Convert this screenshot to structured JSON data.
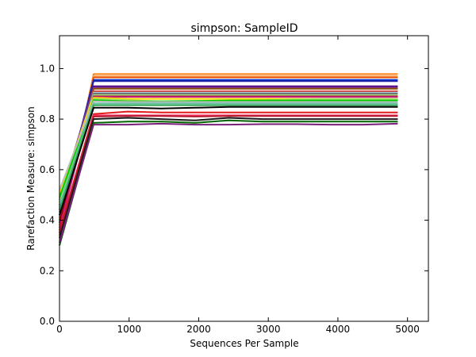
{
  "chart_data": {
    "type": "line",
    "title": "simpson: SampleID",
    "xlabel": "Sequences Per Sample",
    "ylabel": "Rarefaction Measure: simpson",
    "xlim": [
      0,
      5300
    ],
    "ylim": [
      0.0,
      1.13
    ],
    "x_ticks": [
      "0",
      "1000",
      "2000",
      "3000",
      "4000",
      "5000"
    ],
    "y_ticks": [
      "0.0",
      "0.2",
      "0.4",
      "0.6",
      "0.8",
      "1.0"
    ],
    "grid": false,
    "legend": "none",
    "x": [
      0,
      490,
      980,
      1460,
      1950,
      2430,
      2920,
      3400,
      3890,
      4370,
      4860
    ],
    "series": [
      {
        "color": "#ff7f0e",
        "values": [
          0.34,
          0.978,
          0.978,
          0.978,
          0.978,
          0.978,
          0.978,
          0.978,
          0.978,
          0.978,
          0.978
        ]
      },
      {
        "color": "#fdae6b",
        "values": [
          0.36,
          0.97,
          0.97,
          0.97,
          0.97,
          0.97,
          0.97,
          0.97,
          0.97,
          0.97,
          0.97
        ]
      },
      {
        "color": "#e6550d",
        "values": [
          0.38,
          0.965,
          0.965,
          0.965,
          0.965,
          0.965,
          0.965,
          0.965,
          0.965,
          0.965,
          0.965
        ]
      },
      {
        "color": "#0033cc",
        "values": [
          0.42,
          0.955,
          0.955,
          0.955,
          0.955,
          0.955,
          0.955,
          0.955,
          0.955,
          0.955,
          0.955
        ]
      },
      {
        "color": "#2222aa",
        "values": [
          0.44,
          0.95,
          0.95,
          0.95,
          0.95,
          0.95,
          0.95,
          0.95,
          0.95,
          0.95,
          0.95
        ]
      },
      {
        "color": "#4b0082",
        "values": [
          0.46,
          0.93,
          0.93,
          0.93,
          0.93,
          0.93,
          0.93,
          0.93,
          0.93,
          0.93,
          0.93
        ]
      },
      {
        "color": "#7b3294",
        "values": [
          0.48,
          0.925,
          0.925,
          0.925,
          0.925,
          0.925,
          0.925,
          0.925,
          0.925,
          0.925,
          0.925
        ]
      },
      {
        "color": "#8c510a",
        "values": [
          0.4,
          0.92,
          0.92,
          0.92,
          0.92,
          0.92,
          0.92,
          0.92,
          0.92,
          0.92,
          0.92
        ]
      },
      {
        "color": "#d73027",
        "values": [
          0.41,
          0.91,
          0.91,
          0.91,
          0.91,
          0.91,
          0.91,
          0.91,
          0.91,
          0.91,
          0.91
        ]
      },
      {
        "color": "#9ecae1",
        "values": [
          0.45,
          0.905,
          0.905,
          0.905,
          0.905,
          0.905,
          0.905,
          0.905,
          0.905,
          0.905,
          0.905
        ]
      },
      {
        "color": "#636363",
        "values": [
          0.43,
          0.9,
          0.9,
          0.9,
          0.9,
          0.9,
          0.9,
          0.9,
          0.9,
          0.9,
          0.9
        ]
      },
      {
        "color": "#b2df8a",
        "values": [
          0.5,
          0.895,
          0.895,
          0.895,
          0.895,
          0.895,
          0.895,
          0.895,
          0.895,
          0.895,
          0.895
        ]
      },
      {
        "color": "#8b0000",
        "values": [
          0.39,
          0.89,
          0.89,
          0.89,
          0.89,
          0.89,
          0.89,
          0.89,
          0.89,
          0.89,
          0.89
        ]
      },
      {
        "color": "#c51b7d",
        "values": [
          0.37,
          0.888,
          0.888,
          0.888,
          0.888,
          0.888,
          0.888,
          0.888,
          0.888,
          0.888,
          0.888
        ]
      },
      {
        "color": "#ffd700",
        "values": [
          0.51,
          0.885,
          0.88,
          0.88,
          0.88,
          0.88,
          0.88,
          0.88,
          0.88,
          0.88,
          0.88
        ]
      },
      {
        "color": "#a6d96a",
        "values": [
          0.47,
          0.88,
          0.875,
          0.87,
          0.87,
          0.872,
          0.875,
          0.878,
          0.88,
          0.88,
          0.88
        ]
      },
      {
        "color": "#00cc00",
        "values": [
          0.49,
          0.875,
          0.87,
          0.87,
          0.872,
          0.874,
          0.874,
          0.874,
          0.874,
          0.874,
          0.874
        ]
      },
      {
        "color": "#bdbdbd",
        "values": [
          0.52,
          0.87,
          0.868,
          0.868,
          0.868,
          0.868,
          0.868,
          0.868,
          0.868,
          0.868,
          0.868
        ]
      },
      {
        "color": "#66c2a5",
        "values": [
          0.46,
          0.862,
          0.862,
          0.862,
          0.862,
          0.862,
          0.862,
          0.862,
          0.862,
          0.862,
          0.862
        ]
      },
      {
        "color": "#31a354",
        "values": [
          0.44,
          0.855,
          0.855,
          0.855,
          0.855,
          0.855,
          0.855,
          0.855,
          0.855,
          0.855,
          0.855
        ]
      },
      {
        "color": "#000000",
        "values": [
          0.42,
          0.845,
          0.845,
          0.842,
          0.845,
          0.848,
          0.848,
          0.848,
          0.848,
          0.848,
          0.848
        ]
      },
      {
        "color": "#e31a1c",
        "values": [
          0.36,
          0.82,
          0.83,
          0.826,
          0.826,
          0.826,
          0.826,
          0.826,
          0.826,
          0.826,
          0.826
        ]
      },
      {
        "color": "#ff3366",
        "values": [
          0.35,
          0.815,
          0.815,
          0.815,
          0.815,
          0.815,
          0.815,
          0.815,
          0.815,
          0.815,
          0.815
        ]
      },
      {
        "color": "#b2182b",
        "values": [
          0.35,
          0.81,
          0.812,
          0.812,
          0.81,
          0.812,
          0.812,
          0.812,
          0.812,
          0.812,
          0.812
        ]
      },
      {
        "color": "#1a1a1a",
        "values": [
          0.33,
          0.8,
          0.805,
          0.8,
          0.795,
          0.805,
          0.8,
          0.8,
          0.8,
          0.8,
          0.8
        ]
      },
      {
        "color": "#006400",
        "values": [
          0.3,
          0.785,
          0.79,
          0.79,
          0.785,
          0.795,
          0.79,
          0.79,
          0.79,
          0.79,
          0.79
        ]
      },
      {
        "color": "#7a1f7a",
        "values": [
          0.31,
          0.778,
          0.778,
          0.782,
          0.778,
          0.778,
          0.78,
          0.78,
          0.778,
          0.778,
          0.782
        ]
      }
    ]
  }
}
